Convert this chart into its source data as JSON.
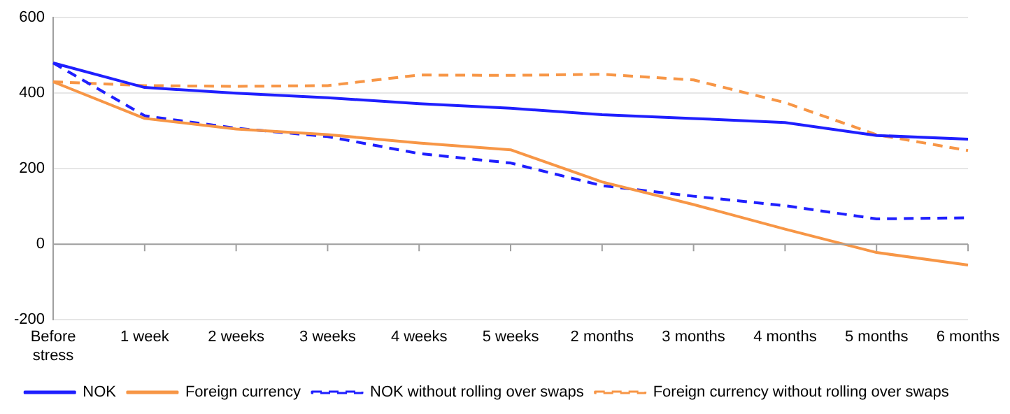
{
  "chart_data": {
    "type": "line",
    "categories": [
      "Before stress",
      "1 week",
      "2 weeks",
      "3 weeks",
      "4 weeks",
      "5 weeks",
      "2 months",
      "3 months",
      "4 months",
      "5 months",
      "6 months"
    ],
    "series": [
      {
        "name": "NOK",
        "color": "#1f1fff",
        "line_style": "solid",
        "values": [
          480,
          415,
          400,
          388,
          372,
          360,
          343,
          333,
          322,
          288,
          278
        ]
      },
      {
        "name": "Foreign currency",
        "color": "#f79646",
        "line_style": "solid",
        "values": [
          430,
          333,
          305,
          290,
          268,
          250,
          165,
          105,
          40,
          -22,
          -55
        ]
      },
      {
        "name": "NOK without rolling over swaps",
        "color": "#1f1fff",
        "line_style": "dashed",
        "values": [
          480,
          340,
          307,
          285,
          240,
          215,
          155,
          127,
          102,
          67,
          70
        ]
      },
      {
        "name": "Foreign currency without rolling over swaps",
        "color": "#f79646",
        "line_style": "dashed",
        "values": [
          430,
          420,
          418,
          420,
          448,
          447,
          450,
          435,
          375,
          290,
          248
        ]
      }
    ],
    "ylim": [
      -200,
      600
    ],
    "yticks": [
      -200,
      0,
      200,
      400,
      600
    ],
    "grid": "y",
    "legend": "bottom",
    "marker": "none"
  }
}
